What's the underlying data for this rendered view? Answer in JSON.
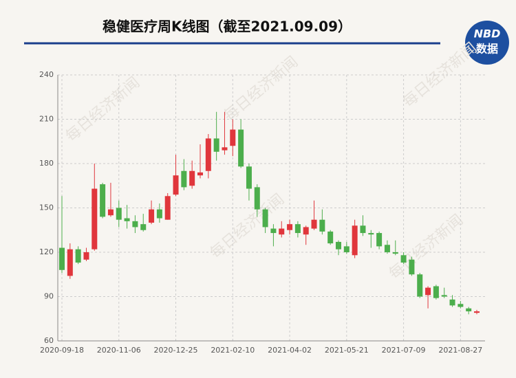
{
  "chart_data": {
    "type": "candlestick",
    "title": "稳健医疗周K线图（截至2021.09.09）",
    "logo": {
      "top": "NBD",
      "bottom": "数据"
    },
    "watermark": "每日经济新闻",
    "categories": [
      "2020-09-18",
      null,
      null,
      null,
      null,
      null,
      null,
      "2020-11-06",
      null,
      null,
      null,
      null,
      null,
      null,
      "2020-12-25",
      null,
      null,
      null,
      null,
      null,
      null,
      "2021-02-10",
      null,
      null,
      null,
      null,
      null,
      null,
      "2021-04-02",
      null,
      null,
      null,
      null,
      null,
      null,
      "2021-05-21",
      null,
      null,
      null,
      null,
      null,
      null,
      "2021-07-09",
      null,
      null,
      null,
      null,
      null,
      null,
      "2021-08-27",
      null,
      null
    ],
    "open": [
      123,
      104,
      122,
      115,
      122,
      166,
      145,
      150,
      143,
      141,
      139,
      140,
      149,
      142,
      159,
      175,
      165,
      172,
      175,
      197,
      189,
      192,
      203,
      178,
      164,
      149,
      136,
      132,
      135,
      139,
      132,
      136,
      142,
      134,
      127,
      124,
      118,
      138,
      133,
      133,
      125,
      120,
      118,
      115,
      105,
      91,
      97,
      91,
      88,
      85,
      82,
      79
    ],
    "high": [
      158,
      126,
      124,
      123,
      180,
      167,
      167,
      155,
      152,
      145,
      146,
      155,
      153,
      160,
      186,
      183,
      182,
      193,
      200,
      215,
      215,
      210,
      210,
      180,
      166,
      150,
      139,
      141,
      142,
      141,
      138,
      155,
      149,
      135,
      128,
      127,
      142,
      145,
      135,
      134,
      128,
      128,
      120,
      117,
      106,
      97,
      98,
      96,
      91,
      87,
      83,
      81
    ],
    "low": [
      106,
      102,
      112,
      114,
      121,
      143,
      144,
      137,
      136,
      133,
      134,
      139,
      140,
      142,
      158,
      162,
      163,
      170,
      170,
      182,
      186,
      185,
      177,
      155,
      144,
      133,
      124,
      130,
      132,
      130,
      125,
      135,
      132,
      125,
      118,
      119,
      116,
      131,
      123,
      122,
      119,
      118,
      112,
      104,
      89,
      82,
      88,
      89,
      83,
      82,
      78,
      78
    ],
    "close": [
      108,
      122,
      113,
      120,
      163,
      144,
      149,
      142,
      141,
      137,
      135,
      149,
      143,
      158,
      172,
      164,
      175,
      174,
      197,
      188,
      191,
      203,
      178,
      163,
      149,
      137,
      133,
      136,
      139,
      133,
      137,
      142,
      134,
      126,
      122,
      120,
      138,
      133,
      132,
      124,
      120,
      119,
      113,
      105,
      90,
      96,
      89,
      90,
      84,
      83,
      80,
      80
    ],
    "up_color": "#e0363c",
    "down_color": "#4cae4c",
    "ylim": [
      60,
      240
    ],
    "yticks": [
      60,
      90,
      120,
      150,
      180,
      210,
      240
    ],
    "grid": true
  }
}
